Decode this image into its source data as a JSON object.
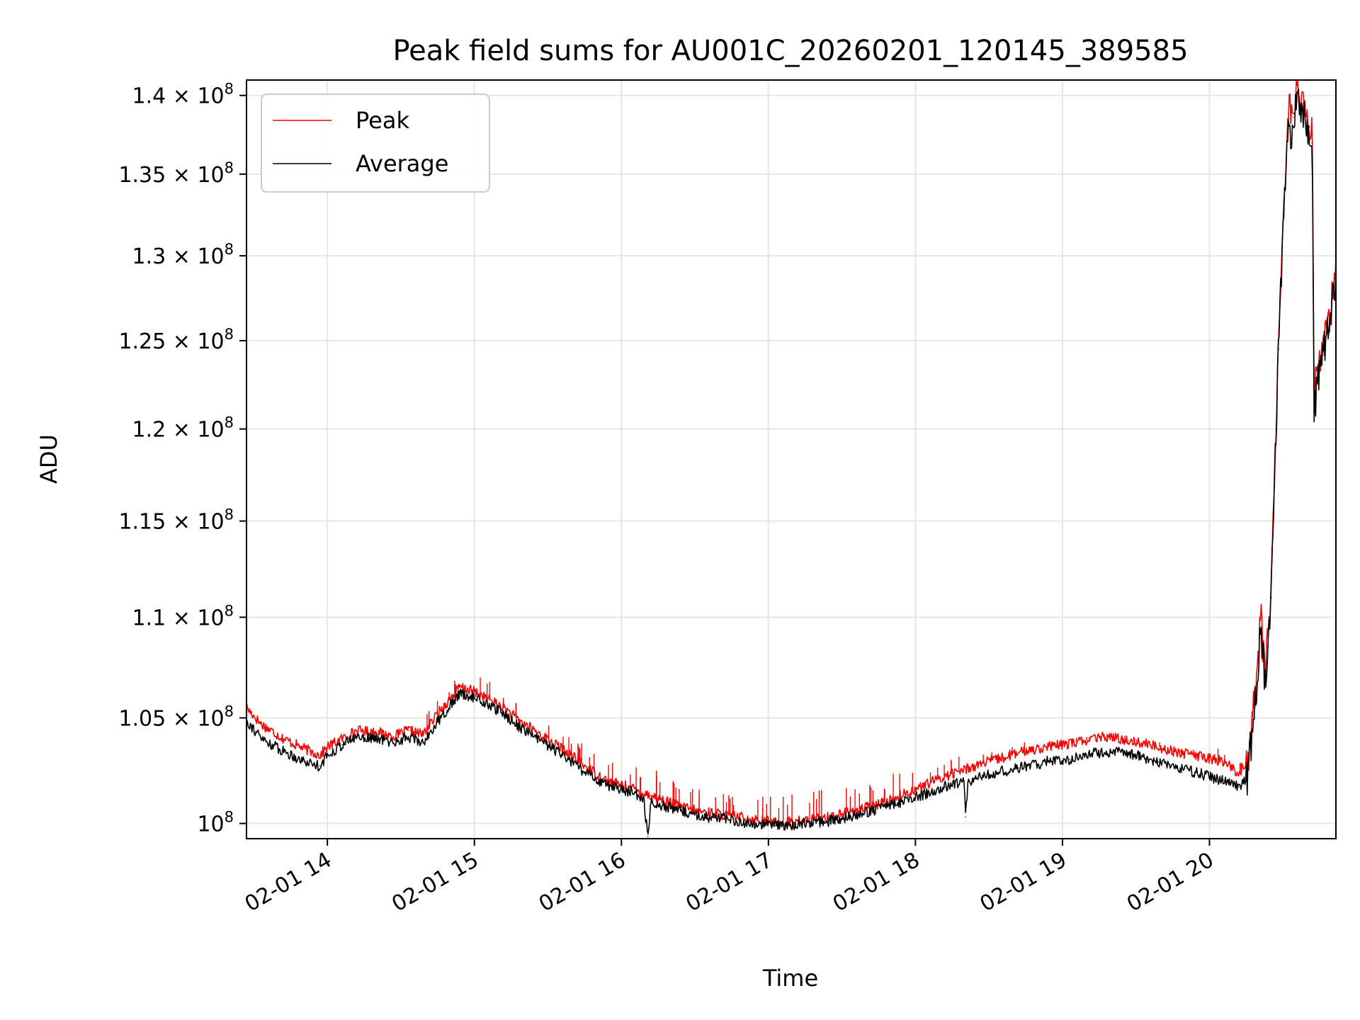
{
  "chart_data": {
    "type": "line",
    "title": "Peak field sums for AU001C_20260201_120145_389585",
    "xlabel": "Time",
    "ylabel": "ADU",
    "x_unit": "hours since 02-01 00:00",
    "xlim": [
      13.45,
      20.86
    ],
    "ylim": [
      99300000,
      141000000
    ],
    "x_ticks": [
      {
        "value": 14,
        "label": "02-01 14"
      },
      {
        "value": 15,
        "label": "02-01 15"
      },
      {
        "value": 16,
        "label": "02-01 16"
      },
      {
        "value": 17,
        "label": "02-01 17"
      },
      {
        "value": 18,
        "label": "02-01 18"
      },
      {
        "value": 19,
        "label": "02-01 19"
      },
      {
        "value": 20,
        "label": "02-01 20"
      }
    ],
    "y_ticks": [
      {
        "value": 100000000,
        "mantissa": "",
        "exponent": "8"
      },
      {
        "value": 105000000,
        "mantissa": "1.05",
        "exponent": "8"
      },
      {
        "value": 110000000,
        "mantissa": "1.1",
        "exponent": "8"
      },
      {
        "value": 115000000,
        "mantissa": "1.15",
        "exponent": "8"
      },
      {
        "value": 120000000,
        "mantissa": "1.2",
        "exponent": "8"
      },
      {
        "value": 125000000,
        "mantissa": "1.25",
        "exponent": "8"
      },
      {
        "value": 130000000,
        "mantissa": "1.3",
        "exponent": "8"
      },
      {
        "value": 135000000,
        "mantissa": "1.35",
        "exponent": "8"
      },
      {
        "value": 140000000,
        "mantissa": "1.4",
        "exponent": "8"
      }
    ],
    "grid": true,
    "legend_position": "top-left",
    "series": [
      {
        "name": "Peak",
        "color": "#ff0000",
        "points": [
          [
            13.45,
            105500000
          ],
          [
            13.55,
            104700000
          ],
          [
            13.7,
            104000000
          ],
          [
            13.85,
            103500000
          ],
          [
            13.95,
            103200000
          ],
          [
            14.0,
            103600000
          ],
          [
            14.1,
            104000000
          ],
          [
            14.2,
            104400000
          ],
          [
            14.35,
            104300000
          ],
          [
            14.45,
            104100000
          ],
          [
            14.55,
            104400000
          ],
          [
            14.65,
            104200000
          ],
          [
            14.75,
            105200000
          ],
          [
            14.9,
            106500000
          ],
          [
            15.0,
            106300000
          ],
          [
            15.1,
            105900000
          ],
          [
            15.2,
            105500000
          ],
          [
            15.3,
            104900000
          ],
          [
            15.45,
            104200000
          ],
          [
            15.6,
            103500000
          ],
          [
            15.75,
            102700000
          ],
          [
            15.9,
            102000000
          ],
          [
            16.05,
            101700000
          ],
          [
            16.2,
            101300000
          ],
          [
            16.35,
            100900000
          ],
          [
            16.5,
            100600000
          ],
          [
            16.7,
            100400000
          ],
          [
            16.9,
            100200000
          ],
          [
            17.05,
            100050000
          ],
          [
            17.2,
            100100000
          ],
          [
            17.4,
            100300000
          ],
          [
            17.6,
            100600000
          ],
          [
            17.8,
            101000000
          ],
          [
            18.0,
            101600000
          ],
          [
            18.2,
            102200000
          ],
          [
            18.4,
            102700000
          ],
          [
            18.6,
            103100000
          ],
          [
            18.8,
            103500000
          ],
          [
            19.0,
            103700000
          ],
          [
            19.15,
            103900000
          ],
          [
            19.3,
            104100000
          ],
          [
            19.45,
            103900000
          ],
          [
            19.6,
            103700000
          ],
          [
            19.75,
            103400000
          ],
          [
            19.9,
            103200000
          ],
          [
            20.1,
            102900000
          ],
          [
            20.2,
            102300000
          ],
          [
            20.26,
            103000000
          ],
          [
            20.31,
            106000000
          ],
          [
            20.35,
            110000000
          ],
          [
            20.38,
            107000000
          ],
          [
            20.42,
            111500000
          ],
          [
            20.47,
            125000000
          ],
          [
            20.51,
            134000000
          ],
          [
            20.54,
            139500000
          ],
          [
            20.57,
            138600000
          ],
          [
            20.59,
            140500000
          ],
          [
            20.63,
            139500000
          ],
          [
            20.68,
            138000000
          ],
          [
            20.7,
            137500000
          ],
          [
            20.71,
            122500000
          ],
          [
            20.74,
            123500000
          ],
          [
            20.78,
            125000000
          ],
          [
            20.82,
            126500000
          ],
          [
            20.86,
            129500000
          ]
        ],
        "spikes": [
          [
            14.76,
            106000000
          ],
          [
            15.18,
            106500000
          ],
          [
            15.65,
            104000000
          ],
          [
            15.85,
            103300000
          ],
          [
            16.2,
            102500000
          ],
          [
            16.35,
            102200000
          ],
          [
            16.6,
            101500000
          ],
          [
            16.85,
            101200000
          ],
          [
            17.05,
            101300000
          ],
          [
            17.3,
            101500000
          ],
          [
            17.55,
            101800000
          ],
          [
            17.85,
            102300000
          ],
          [
            18.25,
            103000000
          ],
          [
            18.6,
            103500000
          ],
          [
            18.9,
            103800000
          ],
          [
            19.2,
            104200000
          ],
          [
            19.55,
            104000000
          ],
          [
            19.85,
            103500000
          ],
          [
            20.15,
            103200000
          ]
        ]
      },
      {
        "name": "Average",
        "color": "#000000",
        "points": [
          [
            13.45,
            104900000
          ],
          [
            13.55,
            104000000
          ],
          [
            13.7,
            103400000
          ],
          [
            13.85,
            102900000
          ],
          [
            13.95,
            102700000
          ],
          [
            14.0,
            103200000
          ],
          [
            14.1,
            103700000
          ],
          [
            14.2,
            104100000
          ],
          [
            14.35,
            104000000
          ],
          [
            14.45,
            103800000
          ],
          [
            14.55,
            104100000
          ],
          [
            14.65,
            103800000
          ],
          [
            14.75,
            104800000
          ],
          [
            14.9,
            106200000
          ],
          [
            15.0,
            106000000
          ],
          [
            15.1,
            105600000
          ],
          [
            15.2,
            105200000
          ],
          [
            15.3,
            104600000
          ],
          [
            15.45,
            103900000
          ],
          [
            15.6,
            103200000
          ],
          [
            15.75,
            102400000
          ],
          [
            15.9,
            101800000
          ],
          [
            16.05,
            101500000
          ],
          [
            16.15,
            101200000
          ],
          [
            16.18,
            99400000
          ],
          [
            16.2,
            101000000
          ],
          [
            16.35,
            100700000
          ],
          [
            16.5,
            100400000
          ],
          [
            16.7,
            100200000
          ],
          [
            16.9,
            100000000
          ],
          [
            17.05,
            99900000
          ],
          [
            17.2,
            99950000
          ],
          [
            17.4,
            100100000
          ],
          [
            17.6,
            100400000
          ],
          [
            17.8,
            100800000
          ],
          [
            18.0,
            101200000
          ],
          [
            18.2,
            101700000
          ],
          [
            18.33,
            102000000
          ],
          [
            18.34,
            100300000
          ],
          [
            18.36,
            102000000
          ],
          [
            18.5,
            102300000
          ],
          [
            18.7,
            102600000
          ],
          [
            18.9,
            102900000
          ],
          [
            19.05,
            103000000
          ],
          [
            19.2,
            103300000
          ],
          [
            19.35,
            103400000
          ],
          [
            19.5,
            103200000
          ],
          [
            19.65,
            102900000
          ],
          [
            19.8,
            102600000
          ],
          [
            19.95,
            102300000
          ],
          [
            20.1,
            102000000
          ],
          [
            20.2,
            101700000
          ],
          [
            20.26,
            102200000
          ],
          [
            20.31,
            105500000
          ],
          [
            20.35,
            109500000
          ],
          [
            20.38,
            106500000
          ],
          [
            20.42,
            111000000
          ],
          [
            20.47,
            124500000
          ],
          [
            20.51,
            133500000
          ],
          [
            20.54,
            138500000
          ],
          [
            20.56,
            137000000
          ],
          [
            20.59,
            140000000
          ],
          [
            20.63,
            139000000
          ],
          [
            20.68,
            137500000
          ],
          [
            20.7,
            137000000
          ],
          [
            20.71,
            121000000
          ],
          [
            20.74,
            122800000
          ],
          [
            20.78,
            124500000
          ],
          [
            20.82,
            126000000
          ],
          [
            20.86,
            129000000
          ]
        ],
        "spikes": []
      }
    ]
  }
}
